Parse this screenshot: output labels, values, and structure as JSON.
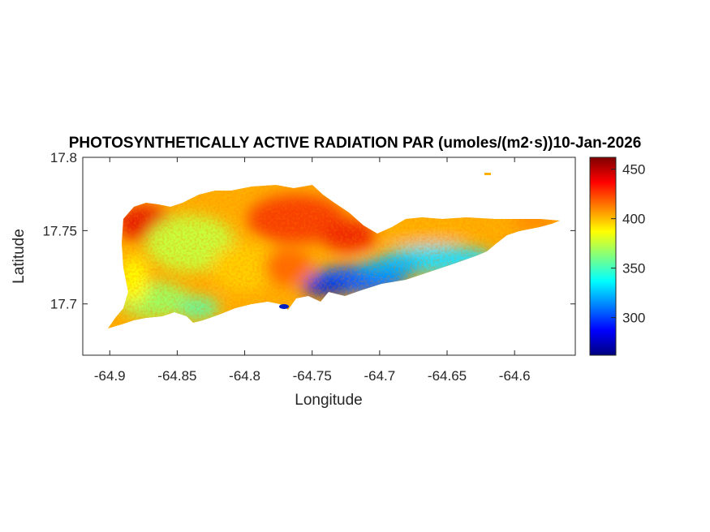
{
  "figure": {
    "title": "PHOTOSYNTHETICALLY ACTIVE RADIATION PAR (umoles/(m2·s))10-Jan-2026",
    "xlabel": "Longitude",
    "ylabel": "Latitude"
  },
  "chart_data": {
    "type": "heatmap",
    "title": "PHOTOSYNTHETICALLY ACTIVE RADIATION PAR (umoles/(m2·s))10-Jan-2026",
    "xlabel": "Longitude",
    "ylabel": "Latitude",
    "xlim": [
      -64.92,
      -64.555
    ],
    "ylim": [
      17.665,
      17.8
    ],
    "x_ticks": [
      -64.9,
      -64.85,
      -64.8,
      -64.75,
      -64.7,
      -64.65,
      -64.6
    ],
    "x_tick_labels": [
      "-64.9",
      "-64.85",
      "-64.8",
      "-64.75",
      "-64.7",
      "-64.65",
      "-64.6"
    ],
    "y_ticks": [
      17.7,
      17.75,
      17.8
    ],
    "y_tick_labels": [
      "17.7",
      "17.75",
      "17.8"
    ],
    "colorbar": {
      "colormap": "jet",
      "range": [
        262,
        462
      ],
      "ticks": [
        300,
        350,
        400,
        450
      ],
      "tick_labels": [
        "300",
        "350",
        "400",
        "450"
      ]
    },
    "grid": false,
    "regions": [
      {
        "name": "northwest",
        "approx_value": 440
      },
      {
        "name": "west-central",
        "approx_value": 380
      },
      {
        "name": "north-central",
        "approx_value": 425
      },
      {
        "name": "south-central coast",
        "approx_value": 290
      },
      {
        "name": "southeast coast",
        "approx_value": 345
      },
      {
        "name": "east tip",
        "approx_value": 410
      }
    ]
  }
}
